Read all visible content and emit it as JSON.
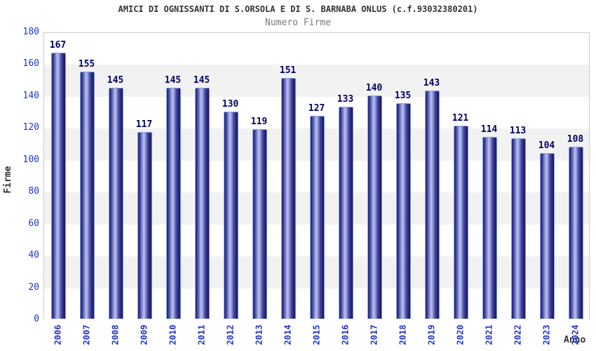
{
  "header": {
    "title": "AMICI DI OGNISSANTI DI S.ORSOLA E DI S. BARNABA ONLUS (c.f.93032380201)",
    "subtitle": "Numero Firme"
  },
  "chart_data": {
    "type": "bar",
    "title": "AMICI DI OGNISSANTI DI S.ORSOLA E DI S. BARNABA ONLUS (c.f.93032380201)",
    "subtitle": "Numero Firme",
    "xlabel": "Anno",
    "ylabel": "Firme",
    "categories": [
      "2006",
      "2007",
      "2008",
      "2009",
      "2010",
      "2011",
      "2012",
      "2013",
      "2014",
      "2015",
      "2016",
      "2017",
      "2018",
      "2019",
      "2020",
      "2021",
      "2022",
      "2023",
      "2024"
    ],
    "values": [
      167,
      155,
      145,
      117,
      145,
      145,
      130,
      119,
      151,
      127,
      133,
      140,
      135,
      143,
      121,
      114,
      113,
      104,
      108
    ],
    "ylim": [
      0,
      180
    ],
    "ytick_step": 20,
    "grid": "alternating-horizontal-bands",
    "legend": "none",
    "colors": {
      "title": "#333333",
      "subtitle": "#7a7a7a",
      "tick_label": "#2233cc",
      "value_label": "#000066",
      "axis_title": "#333333",
      "bar_edge_outline": "#84a2e0",
      "bar_dark": "#1d1d74",
      "bar_mid": "#4a4aa4",
      "bar_light": "#bcc3ee",
      "band_gray": "#f2f2f2",
      "plot_border": "#cccccc",
      "x_axis_line": "#aaaaaa"
    }
  }
}
